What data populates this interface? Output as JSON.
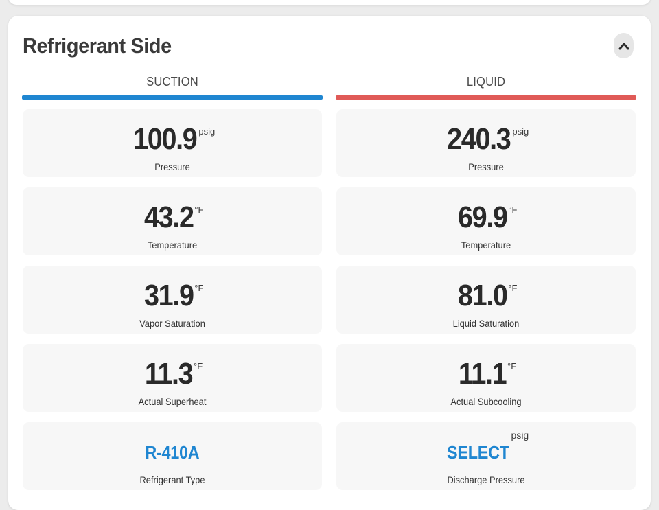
{
  "panel": {
    "title": "Refrigerant Side"
  },
  "colors": {
    "suction_bar": "#1f86d1",
    "liquid_bar": "#e05a57",
    "link": "#1f86d1"
  },
  "suction": {
    "header": "SUCTION",
    "tiles": [
      {
        "value": "100.9",
        "unit": "psig",
        "label": "Pressure"
      },
      {
        "value": "43.2",
        "unit": "°F",
        "label": "Temperature"
      },
      {
        "value": "31.9",
        "unit": "°F",
        "label": "Vapor Saturation"
      },
      {
        "value": "11.3",
        "unit": "°F",
        "label": "Actual Superheat"
      },
      {
        "value": "R-410A",
        "unit": "",
        "label": "Refrigerant Type"
      }
    ]
  },
  "liquid": {
    "header": "LIQUID",
    "tiles": [
      {
        "value": "240.3",
        "unit": "psig",
        "label": "Pressure"
      },
      {
        "value": "69.9",
        "unit": "°F",
        "label": "Temperature"
      },
      {
        "value": "81.0",
        "unit": "°F",
        "label": "Liquid Saturation"
      },
      {
        "value": "11.1",
        "unit": "°F",
        "label": "Actual Subcooling"
      },
      {
        "value": "SELECT",
        "unit": "psig",
        "label": "Discharge Pressure"
      }
    ]
  },
  "icons": {
    "collapse": "chevron-up-icon"
  }
}
